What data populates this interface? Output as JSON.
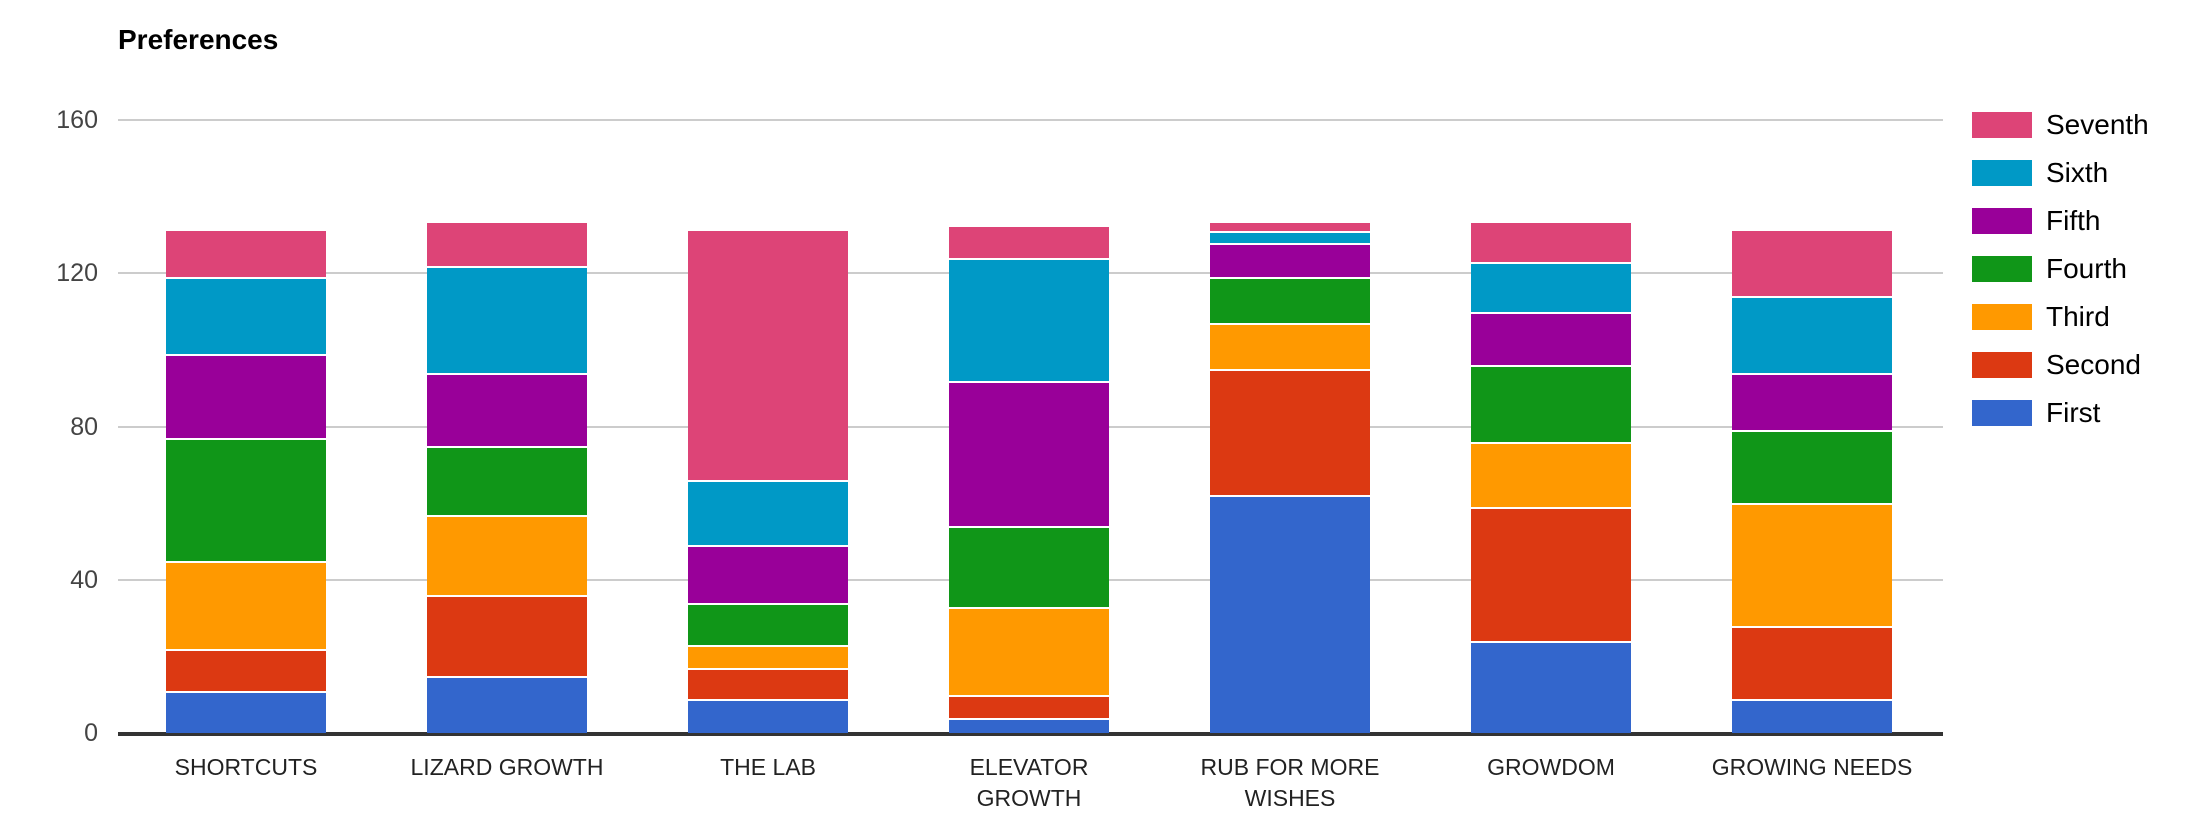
{
  "title": "Preferences",
  "y_axis": {
    "tick_labels": [
      "0",
      "40",
      "80",
      "120",
      "160"
    ]
  },
  "chart_data": {
    "type": "bar",
    "stacked": true,
    "title": "Preferences",
    "categories": [
      "SHORTCUTS",
      "LIZARD GROWTH",
      "THE LAB",
      "ELEVATOR GROWTH",
      "RUB FOR MORE WISHES",
      "GROWDOM",
      "GROWING NEEDS"
    ],
    "series": [
      {
        "name": "First",
        "color": "#3366CC",
        "values": [
          11,
          15,
          9,
          4,
          62,
          24,
          9
        ]
      },
      {
        "name": "Second",
        "color": "#DC3912",
        "values": [
          11,
          21,
          8,
          6,
          33,
          35,
          19
        ]
      },
      {
        "name": "Third",
        "color": "#FF9900",
        "values": [
          23,
          21,
          6,
          23,
          12,
          17,
          32
        ]
      },
      {
        "name": "Fourth",
        "color": "#109618",
        "values": [
          32,
          18,
          11,
          21,
          12,
          20,
          19
        ]
      },
      {
        "name": "Fifth",
        "color": "#990099",
        "values": [
          22,
          19,
          15,
          38,
          9,
          14,
          15
        ]
      },
      {
        "name": "Sixth",
        "color": "#0099C6",
        "values": [
          20,
          28,
          17,
          32,
          3,
          13,
          20
        ]
      },
      {
        "name": "Seventh",
        "color": "#DD4477",
        "values": [
          12,
          11,
          65,
          8,
          2,
          10,
          17
        ]
      }
    ],
    "column_totals": [
      131,
      133,
      131,
      132,
      133,
      133,
      131
    ],
    "ylim": [
      0,
      160
    ],
    "yticks": [
      0,
      40,
      80,
      120,
      160
    ],
    "grid": true,
    "grid_color": "#cccccc",
    "axis_color": "#333333",
    "legend_position": "right",
    "legend_order_top_to_bottom": [
      "Seventh",
      "Sixth",
      "Fifth",
      "Fourth",
      "Third",
      "Second",
      "First"
    ]
  }
}
